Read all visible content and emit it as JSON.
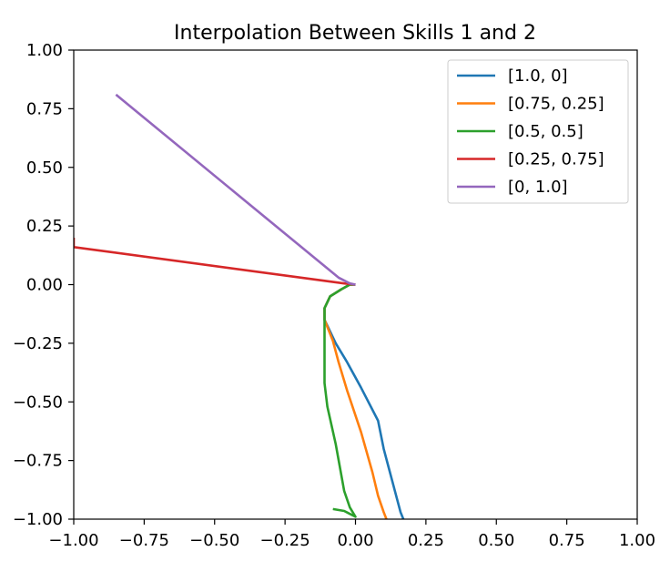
{
  "chart_data": {
    "type": "line",
    "title": "Interpolation Between Skills 1 and 2",
    "xlabel": "",
    "ylabel": "",
    "xlim": [
      -1.0,
      1.0
    ],
    "ylim": [
      -1.0,
      1.0
    ],
    "xticks": [
      -1.0,
      -0.75,
      -0.5,
      -0.25,
      0.0,
      0.25,
      0.5,
      0.75,
      1.0
    ],
    "yticks": [
      -1.0,
      -0.75,
      -0.5,
      -0.25,
      0.0,
      0.25,
      0.5,
      0.75,
      1.0
    ],
    "xtick_labels": [
      "−1.00",
      "−0.75",
      "−0.50",
      "−0.25",
      "0.00",
      "0.25",
      "0.50",
      "0.75",
      "1.00"
    ],
    "ytick_labels": [
      "−1.00",
      "−0.75",
      "−0.50",
      "−0.25",
      "0.00",
      "0.25",
      "0.50",
      "0.75",
      "1.00"
    ],
    "grid": false,
    "legend_position": "top-right",
    "series": [
      {
        "name": "[1.0, 0]",
        "color": "#1f77b4",
        "points": [
          [
            0.0,
            0.0
          ],
          [
            -0.02,
            0.0
          ],
          [
            -0.05,
            -0.02
          ],
          [
            -0.09,
            -0.05
          ],
          [
            -0.11,
            -0.1
          ],
          [
            -0.11,
            -0.15
          ],
          [
            -0.07,
            -0.25
          ],
          [
            -0.03,
            -0.33
          ],
          [
            0.02,
            -0.44
          ],
          [
            0.08,
            -0.58
          ],
          [
            0.1,
            -0.7
          ],
          [
            0.14,
            -0.88
          ],
          [
            0.16,
            -0.97
          ],
          [
            0.17,
            -1.0
          ]
        ]
      },
      {
        "name": "[0.75, 0.25]",
        "color": "#ff7f0e",
        "points": [
          [
            0.0,
            0.0
          ],
          [
            -0.02,
            0.0
          ],
          [
            -0.05,
            -0.02
          ],
          [
            -0.09,
            -0.05
          ],
          [
            -0.11,
            -0.1
          ],
          [
            -0.11,
            -0.15
          ],
          [
            -0.08,
            -0.24
          ],
          [
            -0.06,
            -0.33
          ],
          [
            -0.03,
            -0.45
          ],
          [
            0.02,
            -0.63
          ],
          [
            0.06,
            -0.8
          ],
          [
            0.08,
            -0.9
          ],
          [
            0.1,
            -0.97
          ],
          [
            0.11,
            -1.0
          ]
        ]
      },
      {
        "name": "[0.5, 0.5]",
        "color": "#2ca02c",
        "points": [
          [
            0.0,
            0.0
          ],
          [
            -0.02,
            0.0
          ],
          [
            -0.05,
            -0.02
          ],
          [
            -0.09,
            -0.05
          ],
          [
            -0.11,
            -0.1
          ],
          [
            -0.11,
            -0.15
          ],
          [
            -0.11,
            -0.25
          ],
          [
            -0.11,
            -0.42
          ],
          [
            -0.1,
            -0.52
          ],
          [
            -0.07,
            -0.68
          ],
          [
            -0.04,
            -0.88
          ],
          [
            -0.02,
            -0.95
          ],
          [
            0.0,
            -0.99
          ],
          [
            -0.04,
            -0.965
          ],
          [
            -0.08,
            -0.957
          ]
        ]
      },
      {
        "name": "[0.25, 0.75]",
        "color": "#d62728",
        "points": [
          [
            0.0,
            0.0
          ],
          [
            -0.04,
            0.005
          ],
          [
            -1.0,
            0.16
          ],
          [
            -1.0,
            0.2
          ]
        ]
      },
      {
        "name": "[0, 1.0]",
        "color": "#9467bd",
        "points": [
          [
            0.0,
            0.0
          ],
          [
            -0.02,
            0.005
          ],
          [
            -0.06,
            0.03
          ],
          [
            -0.85,
            0.81
          ]
        ]
      }
    ]
  }
}
